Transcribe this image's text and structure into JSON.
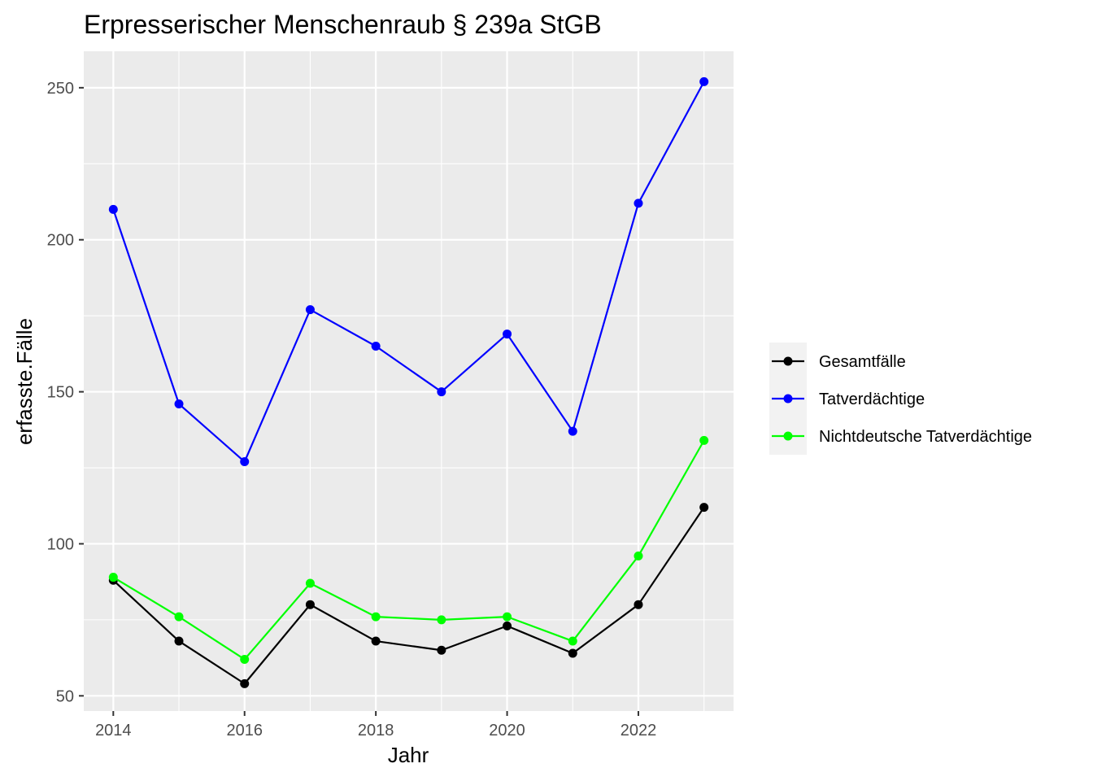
{
  "chart_data": {
    "type": "line",
    "title": "Erpresserischer Menschenraub § 239a StGB",
    "xlabel": "Jahr",
    "ylabel": "erfasste.Fälle",
    "x": [
      2014,
      2015,
      2016,
      2017,
      2018,
      2019,
      2020,
      2021,
      2022,
      2023
    ],
    "xlim": [
      2013.55,
      2023.45
    ],
    "ylim": [
      45,
      262
    ],
    "x_ticks": [
      2014,
      2016,
      2018,
      2020,
      2022
    ],
    "y_ticks": [
      50,
      100,
      150,
      200,
      250
    ],
    "grid": true,
    "legend_position": "right",
    "series": [
      {
        "name": "Gesamtfälle",
        "color": "#000000",
        "values": [
          88,
          68,
          54,
          80,
          68,
          65,
          73,
          64,
          80,
          112
        ]
      },
      {
        "name": "Tatverdächtige",
        "color": "#0000ff",
        "values": [
          210,
          146,
          127,
          177,
          165,
          150,
          169,
          137,
          212,
          252
        ]
      },
      {
        "name": "Nichtdeutsche Tatverdächtige",
        "color": "#00ff00",
        "values": [
          89,
          76,
          62,
          87,
          76,
          75,
          76,
          68,
          96,
          134
        ]
      }
    ]
  }
}
